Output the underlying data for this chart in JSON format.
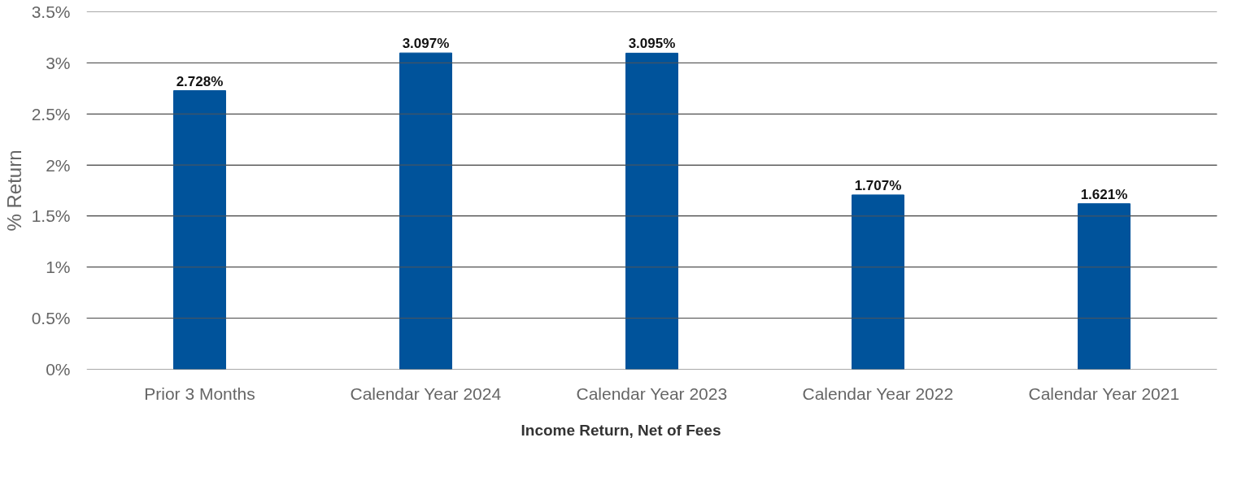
{
  "chart_data": {
    "type": "bar",
    "ylabel": "% Return",
    "categories": [
      "Prior 3 Months",
      "Calendar Year 2024",
      "Calendar Year 2023",
      "Calendar Year 2022",
      "Calendar Year 2021"
    ],
    "series": [
      {
        "name": "Income Return, Net of Fees",
        "color": "#00539b",
        "values": [
          2.728,
          3.097,
          3.095,
          1.707,
          1.621
        ],
        "value_labels": [
          "2.728%",
          "3.097%",
          "3.095%",
          "1.707%",
          "1.621%"
        ]
      }
    ],
    "ylim": [
      0,
      3.5
    ],
    "yticks": [
      {
        "value": 0,
        "label": "0%"
      },
      {
        "value": 0.5,
        "label": "0.5%"
      },
      {
        "value": 1,
        "label": "1%"
      },
      {
        "value": 1.5,
        "label": "1.5%"
      },
      {
        "value": 2,
        "label": "2%"
      },
      {
        "value": 2.5,
        "label": "2.5%"
      },
      {
        "value": 3,
        "label": "3%"
      },
      {
        "value": 3.5,
        "label": "3.5%"
      }
    ],
    "grid": "y",
    "legend": "bottom"
  }
}
